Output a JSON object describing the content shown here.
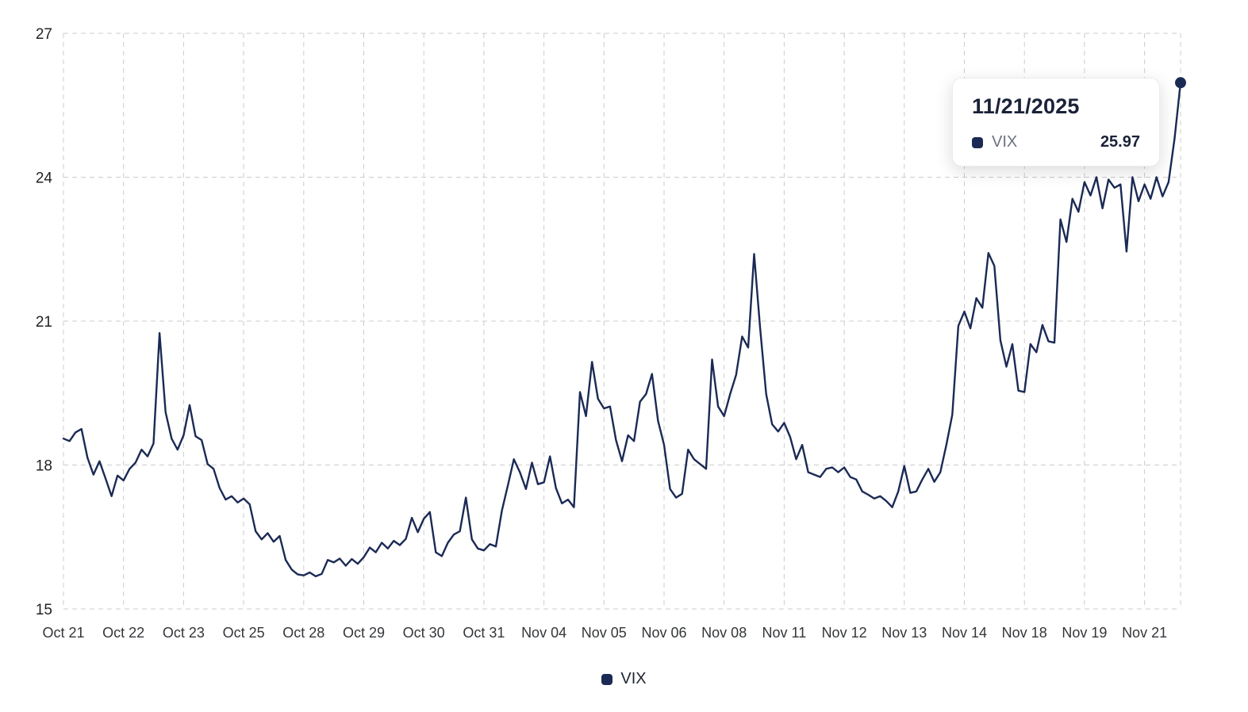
{
  "chart": {
    "legend": {
      "label": "VIX"
    },
    "tooltip": {
      "date": "11/21/2025",
      "series": "VIX",
      "value": "25.97"
    },
    "colors": {
      "line": "#1b2a55",
      "grid": "#cccccc",
      "axis_text": "#333639",
      "tooltip_label": "#6b7280",
      "tooltip_value": "#1a2238"
    }
  },
  "chart_data": {
    "type": "line",
    "title": "",
    "series_name": "VIX",
    "legend_position": "bottom",
    "grid": "dashed",
    "ylim": [
      15,
      27
    ],
    "y_ticks": [
      15,
      18,
      21,
      24,
      27
    ],
    "x_tick_labels": [
      "Oct 21",
      "Oct 22",
      "Oct 23",
      "Oct 25",
      "Oct 28",
      "Oct 29",
      "Oct 30",
      "Oct 31",
      "Nov 04",
      "Nov 05",
      "Nov 06",
      "Nov 08",
      "Nov 11",
      "Nov 12",
      "Nov 13",
      "Nov 14",
      "Nov 18",
      "Nov 19",
      "Nov 21"
    ],
    "points_per_day": 10,
    "last_point_marker": true,
    "last_point_value": 25.97,
    "values": [
      18.55,
      18.5,
      18.68,
      18.75,
      18.15,
      17.8,
      18.08,
      17.72,
      17.35,
      17.78,
      17.68,
      17.92,
      18.05,
      18.32,
      18.18,
      18.45,
      20.75,
      19.1,
      18.55,
      18.32,
      18.62,
      19.25,
      18.6,
      18.52,
      18.02,
      17.92,
      17.52,
      17.28,
      17.35,
      17.22,
      17.3,
      17.18,
      16.62,
      16.45,
      16.58,
      16.4,
      16.52,
      16.02,
      15.82,
      15.72,
      15.7,
      15.76,
      15.68,
      15.73,
      16.02,
      15.97,
      16.05,
      15.9,
      16.04,
      15.94,
      16.08,
      16.28,
      16.18,
      16.38,
      16.26,
      16.42,
      16.33,
      16.46,
      16.9,
      16.6,
      16.88,
      17.02,
      16.18,
      16.1,
      16.38,
      16.55,
      16.62,
      17.32,
      16.45,
      16.26,
      16.22,
      16.35,
      16.3,
      17.05,
      17.58,
      18.12,
      17.85,
      17.5,
      18.05,
      17.6,
      17.64,
      18.18,
      17.52,
      17.2,
      17.28,
      17.12,
      19.52,
      19.02,
      20.15,
      19.38,
      19.18,
      19.22,
      18.52,
      18.08,
      18.62,
      18.5,
      19.32,
      19.48,
      19.9,
      18.92,
      18.42,
      17.5,
      17.32,
      17.4,
      18.32,
      18.12,
      18.02,
      17.92,
      20.2,
      19.22,
      19.02,
      19.48,
      19.88,
      20.68,
      20.45,
      22.4,
      20.85,
      19.48,
      18.85,
      18.7,
      18.88,
      18.58,
      18.12,
      18.42,
      17.85,
      17.8,
      17.75,
      17.92,
      17.95,
      17.85,
      17.95,
      17.75,
      17.7,
      17.45,
      17.38,
      17.3,
      17.35,
      17.25,
      17.12,
      17.45,
      17.98,
      17.42,
      17.45,
      17.7,
      17.92,
      17.65,
      17.85,
      18.42,
      19.05,
      20.9,
      21.2,
      20.85,
      21.48,
      21.28,
      22.42,
      22.15,
      20.6,
      20.05,
      20.52,
      19.55,
      19.52,
      20.52,
      20.35,
      20.92,
      20.58,
      20.55,
      23.12,
      22.65,
      23.55,
      23.28,
      23.9,
      23.62,
      24.0,
      23.35,
      23.95,
      23.78,
      23.85,
      22.45,
      24.0,
      23.5,
      23.85,
      23.55,
      24.0,
      23.6,
      23.9,
      24.8,
      25.97
    ]
  }
}
